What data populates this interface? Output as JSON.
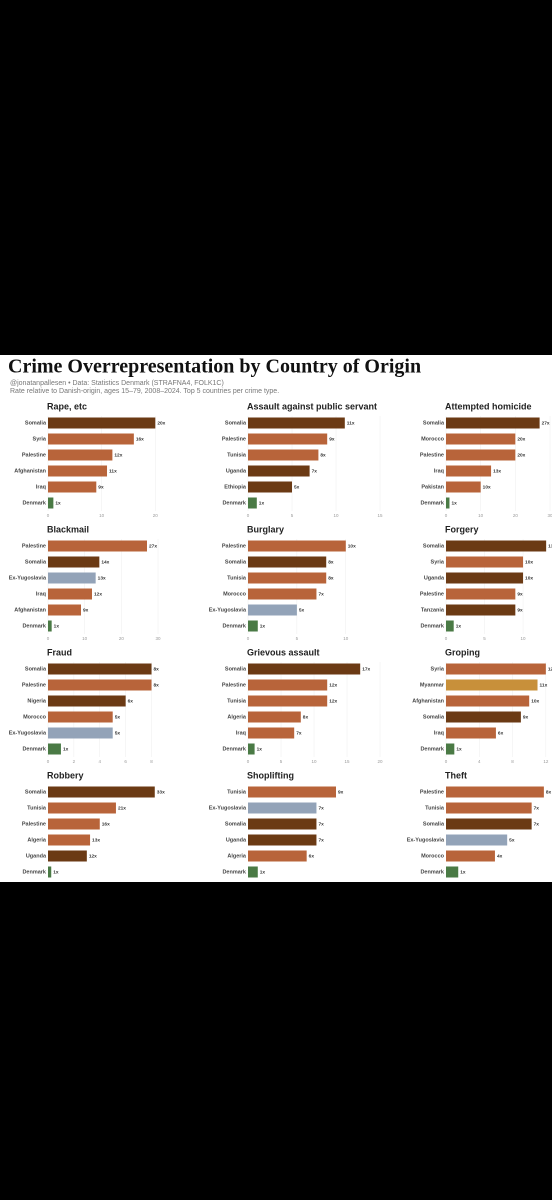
{
  "title": "Crime Overrepresentation by Country of Origin",
  "subtitle": "@jonatanpallesen • Data: Statistics Denmark (STRAFNA4, FOLK1C)",
  "caption": "Rate relative to Danish-origin, ages 15–79, 2008–2024. Top 5 countries per crime type.",
  "chart_data": [
    {
      "type": "bar",
      "orientation": "horizontal",
      "title": "Rape, etc",
      "categories": [
        "Somalia",
        "Syria",
        "Palestine",
        "Afghanistan",
        "Iraq",
        "Denmark"
      ],
      "values": [
        20,
        16,
        12,
        11,
        9,
        1
      ],
      "value_labels": [
        "20x",
        "16x",
        "12x",
        "11x",
        "9x",
        "1x"
      ],
      "colors": [
        "#6b3a14",
        "#b8643a",
        "#b8643a",
        "#b8643a",
        "#b8643a",
        "#4a7a45"
      ],
      "xlim": [
        0,
        20.5
      ],
      "xticks": [
        0,
        10,
        20
      ]
    },
    {
      "type": "bar",
      "orientation": "horizontal",
      "title": "Assault against public servant",
      "categories": [
        "Somalia",
        "Palestine",
        "Tunisia",
        "Uganda",
        "Ethiopia",
        "Denmark"
      ],
      "values": [
        11,
        9,
        8,
        7,
        5,
        1
      ],
      "value_labels": [
        "11x",
        "9x",
        "8x",
        "7x",
        "5x",
        "1x"
      ],
      "colors": [
        "#6b3a14",
        "#b8643a",
        "#b8643a",
        "#6b3a14",
        "#6b3a14",
        "#4a7a45"
      ],
      "xlim": [
        0,
        15
      ],
      "xticks": [
        0,
        5,
        10,
        15
      ]
    },
    {
      "type": "bar",
      "orientation": "horizontal",
      "title": "Attempted homicide",
      "categories": [
        "Somalia",
        "Morocco",
        "Palestine",
        "Iraq",
        "Pakistan",
        "Denmark"
      ],
      "values": [
        27,
        20,
        20,
        13,
        10,
        1
      ],
      "value_labels": [
        "27x",
        "20x",
        "20x",
        "13x",
        "10x",
        "1x"
      ],
      "colors": [
        "#6b3a14",
        "#b8643a",
        "#b8643a",
        "#b8643a",
        "#b8643a",
        "#4a7a45"
      ],
      "xlim": [
        0,
        30
      ],
      "xticks": [
        0,
        10,
        20,
        30
      ]
    },
    {
      "type": "bar",
      "orientation": "horizontal",
      "title": "Blackmail",
      "categories": [
        "Palestine",
        "Somalia",
        "Ex-Yugoslavia",
        "Iraq",
        "Afghanistan",
        "Denmark"
      ],
      "values": [
        27,
        14,
        13,
        12,
        9,
        1
      ],
      "value_labels": [
        "27x",
        "14x",
        "13x",
        "12x",
        "9x",
        "1x"
      ],
      "colors": [
        "#b8643a",
        "#6b3a14",
        "#93a3b8",
        "#b8643a",
        "#b8643a",
        "#4a7a45"
      ],
      "xlim": [
        0,
        30
      ],
      "xticks": [
        0,
        10,
        20,
        30
      ]
    },
    {
      "type": "bar",
      "orientation": "horizontal",
      "title": "Burglary",
      "categories": [
        "Palestine",
        "Somalia",
        "Tunisia",
        "Morocco",
        "Ex-Yugoslavia",
        "Denmark"
      ],
      "values": [
        10,
        8,
        8,
        7,
        5,
        1
      ],
      "value_labels": [
        "10x",
        "8x",
        "8x",
        "7x",
        "5x",
        "1x"
      ],
      "colors": [
        "#b8643a",
        "#6b3a14",
        "#b8643a",
        "#b8643a",
        "#93a3b8",
        "#4a7a45"
      ],
      "xlim": [
        0,
        13.5
      ],
      "xticks": [
        0,
        5,
        10
      ]
    },
    {
      "type": "bar",
      "orientation": "horizontal",
      "title": "Forgery",
      "categories": [
        "Somalia",
        "Syria",
        "Uganda",
        "Palestine",
        "Tanzania",
        "Denmark"
      ],
      "values": [
        13,
        10,
        10,
        9,
        9,
        1
      ],
      "value_labels": [
        "13x",
        "10x",
        "10x",
        "9x",
        "9x",
        "1x"
      ],
      "colors": [
        "#6b3a14",
        "#b8643a",
        "#6b3a14",
        "#b8643a",
        "#6b3a14",
        "#4a7a45"
      ],
      "xlim": [
        0,
        13.5
      ],
      "xticks": [
        0,
        5,
        10
      ]
    },
    {
      "type": "bar",
      "orientation": "horizontal",
      "title": "Fraud",
      "categories": [
        "Somalia",
        "Palestine",
        "Nigeria",
        "Morocco",
        "Ex-Yugoslavia",
        "Denmark"
      ],
      "values": [
        8,
        8,
        6,
        5,
        5,
        1
      ],
      "value_labels": [
        "8x",
        "8x",
        "6x",
        "5x",
        "5x",
        "1x"
      ],
      "colors": [
        "#6b3a14",
        "#b8643a",
        "#6b3a14",
        "#b8643a",
        "#93a3b8",
        "#4a7a45"
      ],
      "xlim": [
        0,
        8.5
      ],
      "xticks": [
        0,
        2,
        4,
        6,
        8
      ]
    },
    {
      "type": "bar",
      "orientation": "horizontal",
      "title": "Grievous assault",
      "categories": [
        "Somalia",
        "Palestine",
        "Tunisia",
        "Algeria",
        "Iraq",
        "Denmark"
      ],
      "values": [
        17,
        12,
        12,
        8,
        7,
        1
      ],
      "value_labels": [
        "17x",
        "12x",
        "12x",
        "8x",
        "7x",
        "1x"
      ],
      "colors": [
        "#6b3a14",
        "#b8643a",
        "#b8643a",
        "#b8643a",
        "#b8643a",
        "#4a7a45"
      ],
      "xlim": [
        0,
        20
      ],
      "xticks": [
        0,
        5,
        10,
        15,
        20
      ]
    },
    {
      "type": "bar",
      "orientation": "horizontal",
      "title": "Groping",
      "categories": [
        "Syria",
        "Myanmar",
        "Afghanistan",
        "Somalia",
        "Iraq",
        "Denmark"
      ],
      "values": [
        12,
        11,
        10,
        9,
        6,
        1
      ],
      "value_labels": [
        "12x",
        "11x",
        "10x",
        "9x",
        "6x",
        "1x"
      ],
      "colors": [
        "#b8643a",
        "#c8903a",
        "#b8643a",
        "#6b3a14",
        "#b8643a",
        "#4a7a45"
      ],
      "xlim": [
        0,
        12.5
      ],
      "xticks": [
        0,
        4,
        8,
        12
      ]
    },
    {
      "type": "bar",
      "orientation": "horizontal",
      "title": "Robbery",
      "categories": [
        "Somalia",
        "Tunisia",
        "Palestine",
        "Algeria",
        "Uganda",
        "Denmark"
      ],
      "values": [
        33,
        21,
        16,
        13,
        12,
        1
      ],
      "value_labels": [
        "33x",
        "21x",
        "16x",
        "13x",
        "12x",
        "1x"
      ],
      "colors": [
        "#6b3a14",
        "#b8643a",
        "#b8643a",
        "#b8643a",
        "#6b3a14",
        "#4a7a45"
      ],
      "xlim": [
        0,
        34
      ]
    },
    {
      "type": "bar",
      "orientation": "horizontal",
      "title": "Shoplifting",
      "categories": [
        "Tunisia",
        "Ex-Yugoslavia",
        "Somalia",
        "Uganda",
        "Algeria",
        "Denmark"
      ],
      "values": [
        9,
        7,
        7,
        7,
        6,
        1
      ],
      "value_labels": [
        "9x",
        "7x",
        "7x",
        "7x",
        "6x",
        "1x"
      ],
      "colors": [
        "#b8643a",
        "#93a3b8",
        "#6b3a14",
        "#6b3a14",
        "#b8643a",
        "#4a7a45"
      ],
      "xlim": [
        0,
        13.5
      ]
    },
    {
      "type": "bar",
      "orientation": "horizontal",
      "title": "Theft",
      "categories": [
        "Palestine",
        "Tunisia",
        "Somalia",
        "Ex-Yugoslavia",
        "Morocco",
        "Denmark"
      ],
      "values": [
        8,
        7,
        7,
        5,
        4,
        1
      ],
      "value_labels": [
        "8x",
        "7x",
        "7x",
        "5x",
        "4x",
        "1x"
      ],
      "colors": [
        "#b8643a",
        "#b8643a",
        "#6b3a14",
        "#93a3b8",
        "#b8643a",
        "#4a7a45"
      ],
      "xlim": [
        0,
        8.5
      ]
    }
  ]
}
